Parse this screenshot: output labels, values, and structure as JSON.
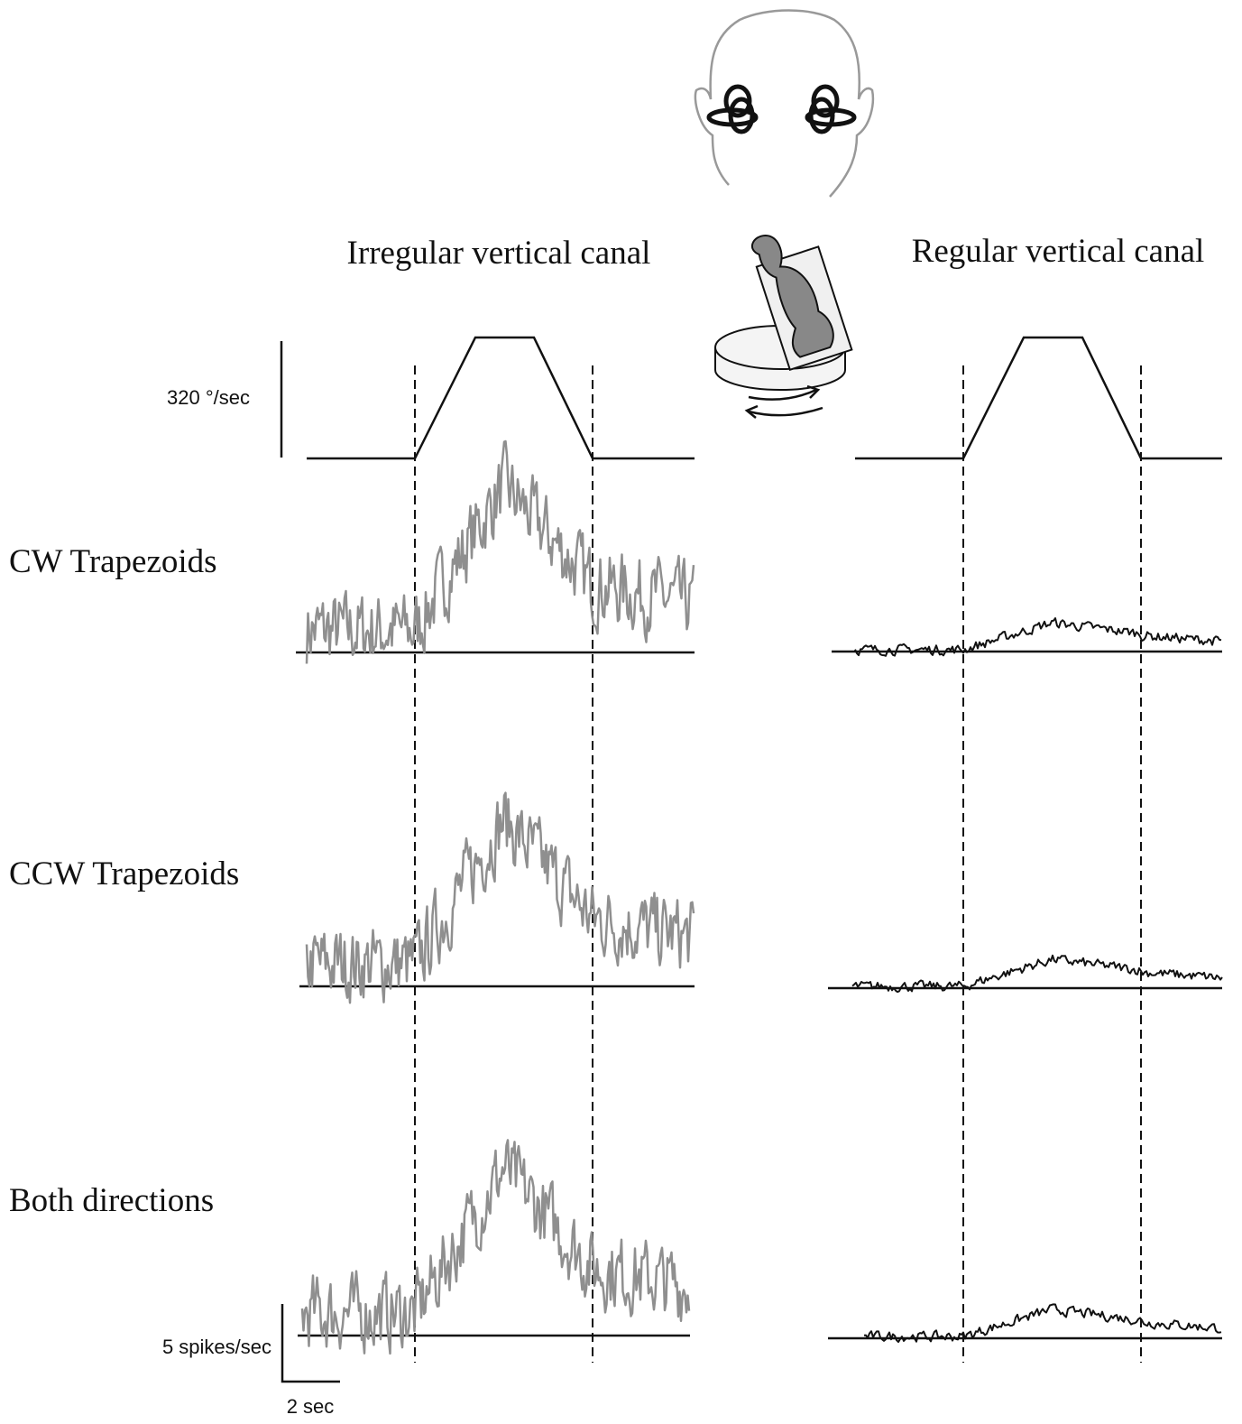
{
  "figure": {
    "left_title": "Irregular vertical canal",
    "right_title": "Regular vertical canal",
    "velocity_scale": "320 °/sec",
    "rows": [
      "CW Trapezoids",
      "CCW Trapezoids",
      "Both directions"
    ],
    "rate_scale": "5 spikes/sec",
    "time_scale": "2 sec"
  }
}
